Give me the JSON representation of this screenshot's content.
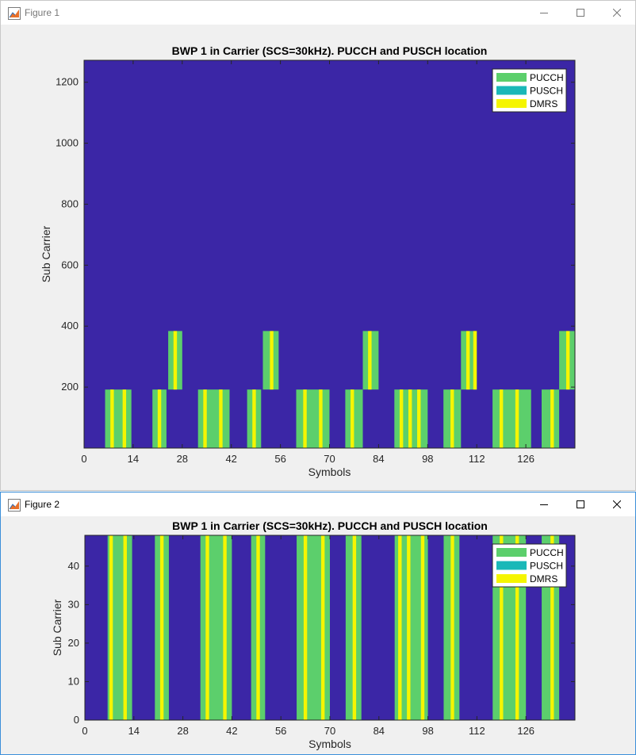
{
  "windows": [
    {
      "title": "Figure 1"
    },
    {
      "title": "Figure 2"
    }
  ],
  "colors": {
    "background": "#3b26a6",
    "pucch": "#5ccf6c",
    "pusch": "#1ab8b8",
    "dmrs": "#f5f500",
    "axes": "#262626"
  },
  "icons": [
    "matlab-figure-icon",
    "minimize-icon",
    "maximize-icon",
    "close-icon"
  ],
  "chart_data": [
    {
      "type": "heatmap",
      "title": "BWP 1 in Carrier (SCS=30kHz). PUCCH and PUSCH location",
      "xlabel": "Symbols",
      "ylabel": "Sub Carrier",
      "xlim": [
        0,
        140
      ],
      "ylim": [
        0,
        1272
      ],
      "xticks": [
        0,
        14,
        28,
        42,
        56,
        70,
        84,
        98,
        112,
        126
      ],
      "yticks": [
        200,
        400,
        600,
        800,
        1000,
        1200
      ],
      "legend": [
        "PUCCH",
        "PUSCH",
        "DMRS"
      ],
      "legend_location": "top-right",
      "blocks": [
        {
          "x0": 6,
          "x1": 13.5,
          "y0": 0,
          "y1": 192,
          "dmrs": [
            7.5,
            11
          ]
        },
        {
          "x0": 19.5,
          "x1": 23.5,
          "y0": 0,
          "y1": 192,
          "dmrs": [
            21
          ]
        },
        {
          "x0": 24,
          "x1": 28,
          "y0": 192,
          "y1": 384,
          "dmrs": [
            25.5
          ]
        },
        {
          "x0": 32.5,
          "x1": 41.5,
          "y0": 0,
          "y1": 192,
          "dmrs": [
            34,
            38.5
          ]
        },
        {
          "x0": 46.5,
          "x1": 50.5,
          "y0": 0,
          "y1": 192,
          "dmrs": [
            48
          ]
        },
        {
          "x0": 51,
          "x1": 55.5,
          "y0": 192,
          "y1": 384,
          "dmrs": [
            53
          ]
        },
        {
          "x0": 60.5,
          "x1": 70,
          "y0": 0,
          "y1": 192,
          "dmrs": [
            62.5,
            67
          ]
        },
        {
          "x0": 74.5,
          "x1": 79.5,
          "y0": 192,
          "y1": 192,
          "dmrs": []
        },
        {
          "x0": 74.5,
          "x1": 79.5,
          "y0": 0,
          "y1": 192,
          "dmrs": [
            76
          ]
        },
        {
          "x0": 79.5,
          "x1": 84,
          "y0": 192,
          "y1": 384,
          "dmrs": [
            81
          ]
        },
        {
          "x0": 88.5,
          "x1": 98,
          "y0": 0,
          "y1": 192,
          "dmrs": [
            90,
            92.5,
            95
          ]
        },
        {
          "x0": 102.5,
          "x1": 107.5,
          "y0": 0,
          "y1": 192,
          "dmrs": [
            104.5
          ]
        },
        {
          "x0": 107.5,
          "x1": 112,
          "y0": 192,
          "y1": 384,
          "dmrs": [
            109,
            111
          ]
        },
        {
          "x0": 116.5,
          "x1": 127.5,
          "y0": 0,
          "y1": 192,
          "dmrs": [
            118.5,
            123
          ]
        },
        {
          "x0": 130.5,
          "x1": 135.5,
          "y0": 0,
          "y1": 192,
          "dmrs": [
            133
          ]
        },
        {
          "x0": 135.5,
          "x1": 140,
          "y0": 192,
          "y1": 384,
          "dmrs": [
            137.5
          ]
        }
      ]
    },
    {
      "type": "heatmap",
      "title": "BWP 1 in Carrier (SCS=30kHz). PUCCH and PUSCH location",
      "xlabel": "Symbols",
      "ylabel": "Sub Carrier",
      "xlim": [
        0,
        140
      ],
      "ylim": [
        0,
        48
      ],
      "xticks": [
        0,
        14,
        28,
        42,
        56,
        70,
        84,
        98,
        112,
        126
      ],
      "yticks": [
        0,
        10,
        20,
        30,
        40
      ],
      "legend": [
        "PUCCH",
        "PUSCH",
        "DMRS"
      ],
      "legend_location": "top-right",
      "blocks": [
        {
          "x0": 6.5,
          "x1": 13.5,
          "y0": 0,
          "y1": 48,
          "dmrs": [
            7,
            11
          ]
        },
        {
          "x0": 20,
          "x1": 24,
          "y0": 0,
          "y1": 48,
          "dmrs": [
            21.5
          ]
        },
        {
          "x0": 33,
          "x1": 42,
          "y0": 0,
          "y1": 48,
          "dmrs": [
            34.5,
            39.5
          ]
        },
        {
          "x0": 47.5,
          "x1": 51.5,
          "y0": 0,
          "y1": 48,
          "dmrs": [
            49
          ]
        },
        {
          "x0": 60.5,
          "x1": 70,
          "y0": 0,
          "y1": 48,
          "dmrs": [
            62.5,
            67.5
          ]
        },
        {
          "x0": 74.5,
          "x1": 79,
          "y0": 0,
          "y1": 48,
          "dmrs": [
            76.5
          ]
        },
        {
          "x0": 88.5,
          "x1": 98,
          "y0": 0,
          "y1": 48,
          "dmrs": [
            89.5,
            92,
            96
          ]
        },
        {
          "x0": 102.5,
          "x1": 107,
          "y0": 0,
          "y1": 48,
          "dmrs": [
            104.5
          ]
        },
        {
          "x0": 116.5,
          "x1": 126,
          "y0": 0,
          "y1": 48,
          "dmrs": [
            118.5,
            123
          ]
        },
        {
          "x0": 130.5,
          "x1": 135.5,
          "y0": 0,
          "y1": 48,
          "dmrs": [
            133
          ]
        }
      ]
    }
  ]
}
